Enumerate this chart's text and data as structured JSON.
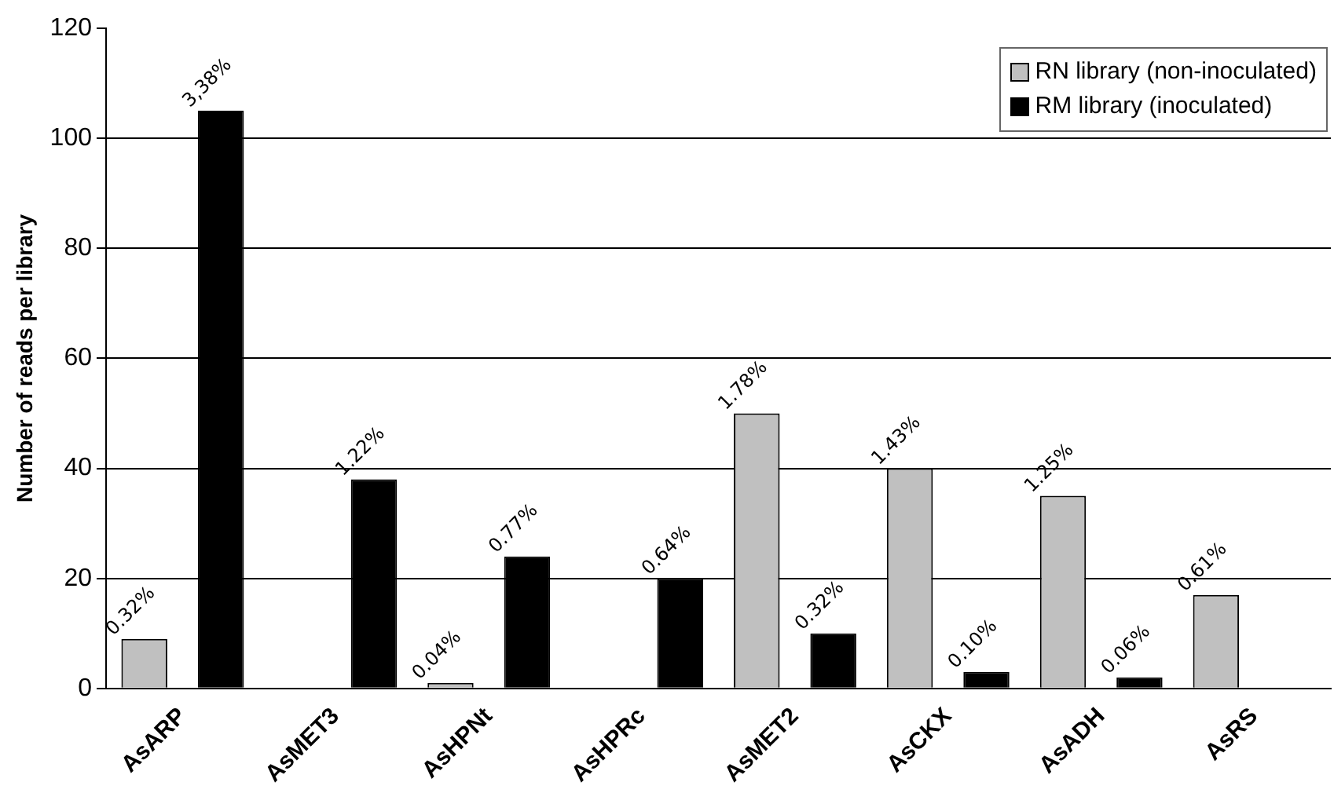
{
  "chart_data": {
    "type": "bar",
    "ylabel": "Number of reads per library",
    "categories": [
      "AsARP",
      "AsMET3",
      "AsHPNt",
      "AsHPRc",
      "AsMET2",
      "AsCKX",
      "AsADH",
      "AsRS"
    ],
    "series": [
      {
        "name": "RN library (non-inoculated)",
        "color": "#c0c0c0",
        "values": [
          9,
          null,
          1,
          null,
          50,
          40,
          35,
          17
        ]
      },
      {
        "name": "RM library (inoculated)",
        "color": "#000000",
        "values": [
          105,
          38,
          24,
          20,
          10,
          3,
          2,
          null
        ]
      }
    ],
    "annotations": [
      "0.32%",
      "3,38%",
      "1.22%",
      "0.04%",
      "0.77%",
      "0.64%",
      "1.78%",
      "0.32%",
      "1.43%",
      "0.10%",
      "1.25%",
      "0.06%",
      "0.61%"
    ],
    "ylim": [
      0,
      120
    ],
    "yticks": [
      0,
      20,
      40,
      60,
      80,
      100,
      120
    ],
    "grid": "y",
    "legend": "top right"
  }
}
